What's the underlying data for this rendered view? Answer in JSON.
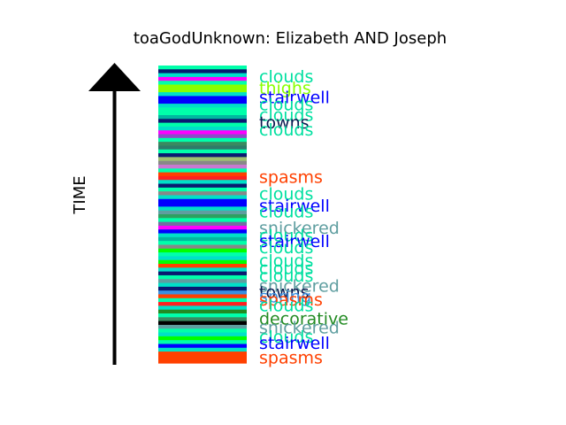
{
  "chart_data": {
    "type": "bar",
    "title": "toaGodUnknown: Elizabeth AND Joseph",
    "ylabel": "TIME",
    "stripe_colors": [
      "#00ffaa",
      "#0a1a70",
      "#00e0c8",
      "#ff00ff",
      "#00ffaa",
      "#88ff00",
      "#88ff00",
      "#00e0c8",
      "#0000ff",
      "#0000ff",
      "#00e0c8",
      "#00ffaa",
      "#00ffaa",
      "#00b8a0",
      "#0a1a70",
      "#00ffaa",
      "#00e0c8",
      "#ff00ff",
      "#8a4cc8",
      "#00ffaa",
      "#3a8a60",
      "#2e7a6a",
      "#00ffaa",
      "#0a1a70",
      "#a0c070",
      "#888888",
      "#c878d0",
      "#00ffaa",
      "#ff4000",
      "#ff2020",
      "#00e0c8",
      "#0a1a70",
      "#00ffaa",
      "#888888",
      "#00e0c8",
      "#0000ff",
      "#0000ff",
      "#00e0c8",
      "#5f9ea0",
      "#2ea060",
      "#00ffaa",
      "#7070a0",
      "#ff00ff",
      "#0000ff",
      "#00e0c8",
      "#00b8a0",
      "#00ffaa",
      "#888888",
      "#00ff00",
      "#00ffaa",
      "#00e0c8",
      "#00ff00",
      "#ff4000",
      "#00e0c8",
      "#0a1a70",
      "#00ffaa",
      "#5f9ea0",
      "#00e0c8",
      "#0a1a70",
      "#3a90e0",
      "#ff4000",
      "#00ffaa",
      "#ff2020",
      "#00e0c8",
      "#228b22",
      "#00ffaa",
      "#3a8a60",
      "#000000",
      "#5f9ea0",
      "#00ffaa",
      "#00e0c8",
      "#00ff00",
      "#00ffaa",
      "#0000ff",
      "#00e0c8",
      "#ff4000",
      "#ff4000",
      "#ff4000"
    ],
    "labels": [
      {
        "text": "clouds",
        "color": "#00e0a0",
        "pos": 0.965
      },
      {
        "text": "thighs",
        "color": "#88ff00",
        "pos": 0.925
      },
      {
        "text": "stairwell",
        "color": "#0000ff",
        "pos": 0.895
      },
      {
        "text": "clouds",
        "color": "#00e0a0",
        "pos": 0.87
      },
      {
        "text": "clouds",
        "color": "#00e0a0",
        "pos": 0.835
      },
      {
        "text": "towns",
        "color": "#0a1a50",
        "pos": 0.81
      },
      {
        "text": "clouds",
        "color": "#00e0a0",
        "pos": 0.785
      },
      {
        "text": "spasms",
        "color": "#ff4000",
        "pos": 0.627
      },
      {
        "text": "clouds",
        "color": "#00e0a0",
        "pos": 0.57
      },
      {
        "text": "stairwell",
        "color": "#0000ff",
        "pos": 0.53
      },
      {
        "text": "clouds",
        "color": "#00e0a0",
        "pos": 0.51
      },
      {
        "text": "snickered",
        "color": "#5f9ea0",
        "pos": 0.455
      },
      {
        "text": "clouds",
        "color": "#00e0a0",
        "pos": 0.43
      },
      {
        "text": "stairwell",
        "color": "#0000ff",
        "pos": 0.41
      },
      {
        "text": "clouds",
        "color": "#00e0a0",
        "pos": 0.39
      },
      {
        "text": "clouds",
        "color": "#00e0a0",
        "pos": 0.345
      },
      {
        "text": "clouds",
        "color": "#00e0a0",
        "pos": 0.32
      },
      {
        "text": "clouds",
        "color": "#00e0a0",
        "pos": 0.295
      },
      {
        "text": "snickered",
        "color": "#5f9ea0",
        "pos": 0.26
      },
      {
        "text": "towns",
        "color": "#0a1a50",
        "pos": 0.24
      },
      {
        "text": "spring",
        "color": "#3a90e0",
        "pos": 0.225
      },
      {
        "text": "spasms",
        "color": "#ff4000",
        "pos": 0.215
      },
      {
        "text": "clouds",
        "color": "#00e0a0",
        "pos": 0.195
      },
      {
        "text": "decorative",
        "color": "#228b22",
        "pos": 0.15
      },
      {
        "text": "snickered",
        "color": "#5f9ea0",
        "pos": 0.12
      },
      {
        "text": "clouds",
        "color": "#00e0a0",
        "pos": 0.09
      },
      {
        "text": "stairwell",
        "color": "#0000ff",
        "pos": 0.068
      },
      {
        "text": "spasms",
        "color": "#ff4000",
        "pos": 0.02
      }
    ]
  }
}
